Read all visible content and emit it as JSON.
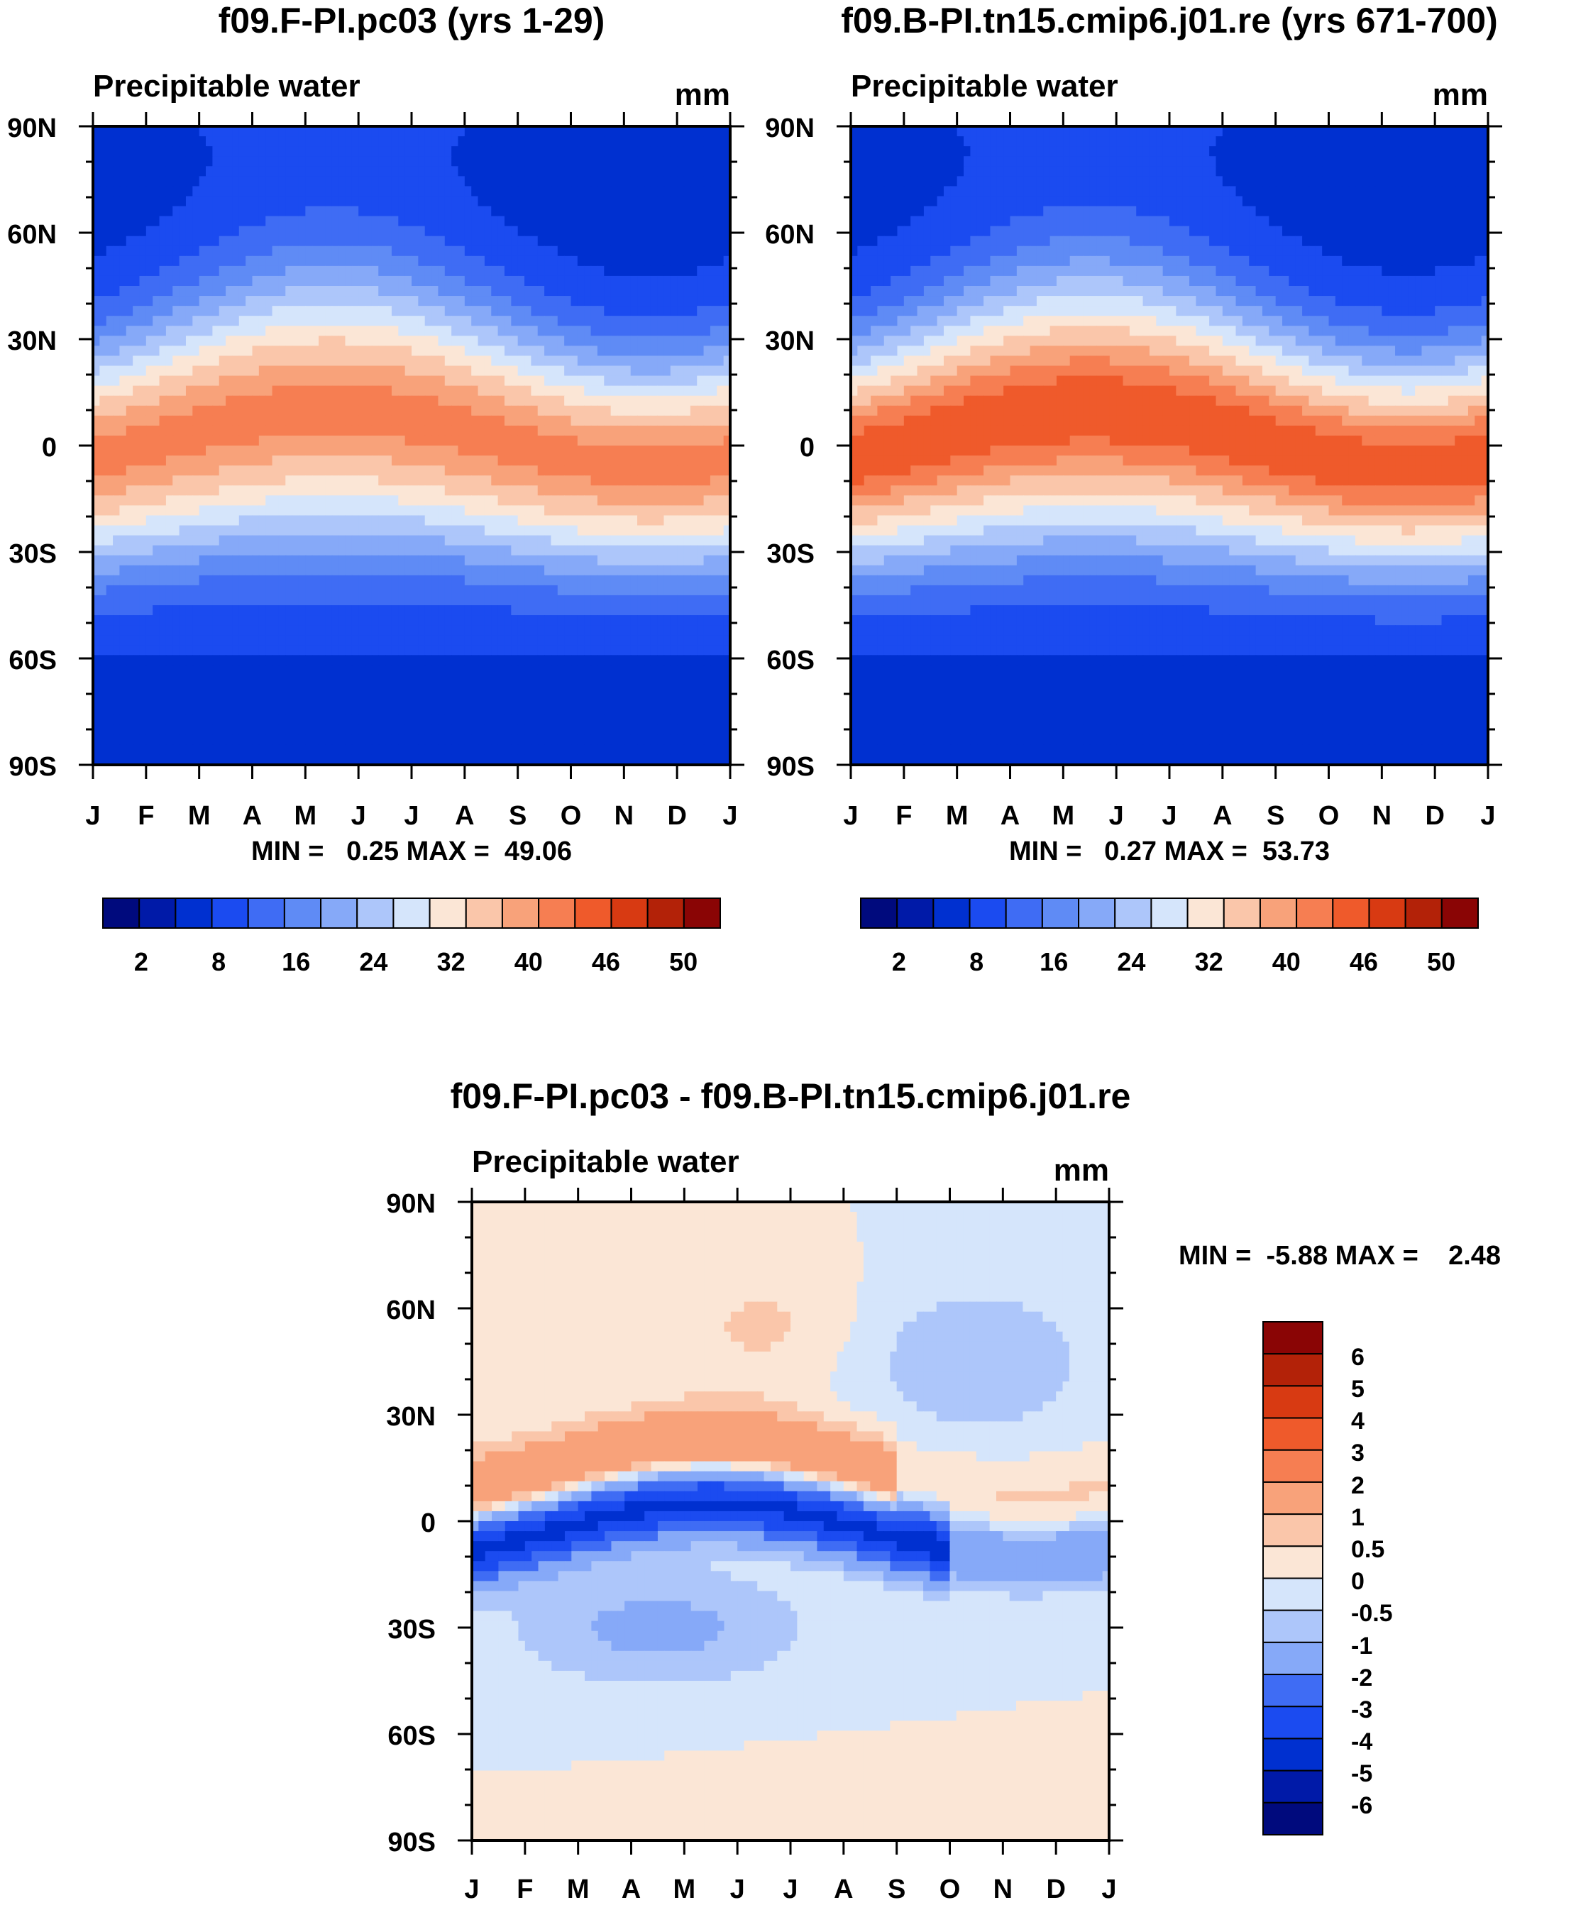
{
  "chart_data": [
    {
      "type": "heatmap",
      "id": "control",
      "title": "f09.F-PI.pc03 (yrs 1-29)",
      "subtitle": "Precipitable water",
      "units": "mm",
      "stats": "MIN =   0.25 MAX =  49.06",
      "min": 0.25,
      "max": 49.06,
      "x_ticks": [
        "J",
        "F",
        "M",
        "A",
        "M",
        "J",
        "J",
        "A",
        "S",
        "O",
        "N",
        "D",
        "J"
      ],
      "y_ticks": [
        "90N",
        "60N",
        "30N",
        "0",
        "30S",
        "60S",
        "90S"
      ],
      "xlim": [
        0,
        12
      ],
      "ylim": [
        -90,
        90
      ],
      "colorbar_ticks": [
        "2",
        "8",
        "16",
        "24",
        "32",
        "40",
        "46",
        "50"
      ]
    },
    {
      "type": "heatmap",
      "id": "test",
      "title": "f09.B-PI.tn15.cmip6.j01.re (yrs 671-700)",
      "subtitle": "Precipitable water",
      "units": "mm",
      "stats": "MIN =   0.27 MAX =  53.73",
      "min": 0.27,
      "max": 53.73,
      "x_ticks": [
        "J",
        "F",
        "M",
        "A",
        "M",
        "J",
        "J",
        "A",
        "S",
        "O",
        "N",
        "D",
        "J"
      ],
      "y_ticks": [
        "90N",
        "60N",
        "30N",
        "0",
        "30S",
        "60S",
        "90S"
      ],
      "xlim": [
        0,
        12
      ],
      "ylim": [
        -90,
        90
      ],
      "colorbar_ticks": [
        "2",
        "8",
        "16",
        "24",
        "32",
        "40",
        "46",
        "50"
      ]
    },
    {
      "type": "heatmap",
      "id": "difference",
      "title": "f09.F-PI.pc03 - f09.B-PI.tn15.cmip6.j01.re",
      "subtitle": "Precipitable water",
      "units": "mm",
      "stats": "MIN =  -5.88 MAX =    2.48",
      "min": -5.88,
      "max": 2.48,
      "x_ticks": [
        "J",
        "F",
        "M",
        "A",
        "M",
        "J",
        "J",
        "A",
        "S",
        "O",
        "N",
        "D",
        "J"
      ],
      "y_ticks": [
        "90N",
        "60N",
        "30N",
        "0",
        "30S",
        "60S",
        "90S"
      ],
      "xlim": [
        0,
        12
      ],
      "ylim": [
        -90,
        90
      ],
      "colorbar_ticks": [
        "6",
        "5",
        "4",
        "3",
        "2",
        "1",
        "0.5",
        "0",
        "-0.5",
        "-1",
        "-2",
        "-3",
        "-4",
        "-5",
        "-6"
      ]
    }
  ],
  "palettes": {
    "abs": [
      "#000a7d",
      "#001aa8",
      "#0030d0",
      "#1b4bf0",
      "#3f6cf4",
      "#5f8bf5",
      "#86a9f8",
      "#adc6fa",
      "#d5e5fb",
      "#fbe6d6",
      "#fac6aa",
      "#f8a27a",
      "#f67e52",
      "#ef5a2b",
      "#d83a12",
      "#b32208",
      "#8a0505"
    ],
    "diff": [
      "#000a7d",
      "#001aa8",
      "#0030d0",
      "#1b4bf0",
      "#3f6cf4",
      "#86a9f8",
      "#adc6fa",
      "#d5e5fb",
      "#fbe6d6",
      "#fac6aa",
      "#f8a27a",
      "#f67e52",
      "#ef5a2b",
      "#d83a12",
      "#b32208",
      "#8a0505"
    ]
  }
}
